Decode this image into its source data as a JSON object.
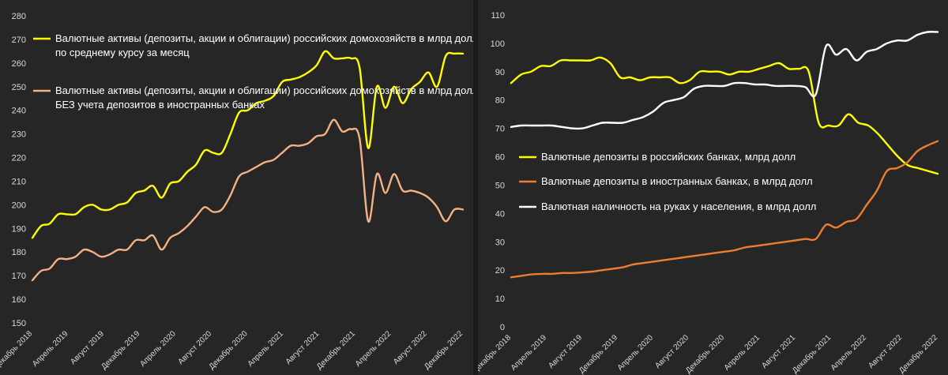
{
  "chart_data": [
    {
      "type": "line",
      "title": "",
      "ylim": [
        150,
        280
      ],
      "yticks": [
        "150",
        "160",
        "170",
        "180",
        "190",
        "200",
        "210",
        "220",
        "230",
        "240",
        "250",
        "260",
        "270",
        "280"
      ],
      "xticks": [
        "Декабрь 2018",
        "Апрель 2019",
        "Август 2019",
        "Декабрь 2019",
        "Апрель 2020",
        "Август 2020",
        "Декабрь 2020",
        "Апрель 2021",
        "Август 2021",
        "Декабрь 2021",
        "Апрель 2022",
        "Август 2022",
        "Декабрь 2022"
      ],
      "grid": false,
      "series": [
        {
          "name": "Валютные активы (депозиты, акции и облигации) российских домохозяйств в млрд долл по среднему курсу за месяц",
          "legend_lines": [
            "Валютные активы (депозиты, акции и облигации) российских домохозяйств в млрд долл",
            "по среднему курсу за месяц"
          ],
          "color": "#ffff00",
          "values": [
            186,
            191,
            192,
            196,
            196,
            196,
            199,
            200,
            198,
            198,
            200,
            201,
            205,
            206,
            208,
            203,
            209,
            210,
            214,
            217,
            223,
            222,
            222,
            230,
            239,
            240,
            243,
            244,
            246,
            252,
            253,
            254,
            256,
            259,
            265,
            262,
            262,
            262,
            258,
            224,
            250,
            241,
            250,
            243,
            249,
            252,
            256,
            250,
            263,
            264,
            264
          ]
        },
        {
          "name": "Валютные активы (депозиты, акции и облигации) российских домохозяйств в млрд долл БЕЗ учета депозитов в иностранных банках",
          "legend_lines": [
            "Валютные активы (депозиты, акции и облигации) российских домохозяйств в млрд долл",
            "БЕЗ учета депозитов в иностранных банках"
          ],
          "color": "#f4b183",
          "values": [
            168,
            172,
            173,
            177,
            177,
            178,
            181,
            180,
            178,
            179,
            181,
            181,
            185,
            185,
            187,
            181,
            186,
            188,
            191,
            195,
            199,
            197,
            198,
            204,
            212,
            214,
            216,
            218,
            219,
            222,
            225,
            225,
            226,
            229,
            230,
            236,
            231,
            232,
            228,
            193,
            213,
            205,
            213,
            206,
            206,
            205,
            203,
            199,
            193,
            198,
            198
          ]
        }
      ]
    },
    {
      "type": "line",
      "title": "",
      "ylim": [
        0,
        110
      ],
      "yticks": [
        "0",
        "10",
        "20",
        "30",
        "40",
        "50",
        "60",
        "70",
        "80",
        "90",
        "100",
        "110"
      ],
      "xticks": [
        "Декабрь 2018",
        "Апрель 2019",
        "Август 2019",
        "Декабрь 2019",
        "Апрель 2020",
        "Август 2020",
        "Декабрь 2020",
        "Апрель 2021",
        "Август 2021",
        "Декабрь 2021",
        "Апрель 2022",
        "Август 2022",
        "Декабрь 2022"
      ],
      "grid": false,
      "series": [
        {
          "name": "Валютные депозиты в российских банках, млрд долл",
          "color": "#ffff00",
          "values": [
            86,
            89,
            90,
            92,
            92,
            94,
            94,
            94,
            94,
            95,
            93,
            88,
            88,
            87,
            88,
            88,
            88,
            86,
            87,
            90,
            90,
            90,
            89,
            90,
            90,
            91,
            92,
            93,
            91,
            91,
            90,
            72,
            71,
            71,
            75,
            72,
            71,
            68,
            64,
            60,
            57,
            56,
            55,
            54
          ]
        },
        {
          "name": "Валютные депозиты в иностранных банках, в млрд долл",
          "color": "#ed7d31",
          "values": [
            17.5,
            18,
            18.5,
            18.7,
            18.7,
            19,
            19,
            19.2,
            19.5,
            20,
            20.5,
            21,
            22,
            22.5,
            23,
            23.5,
            24,
            24.5,
            25,
            25.5,
            26,
            26.5,
            27,
            28,
            28.5,
            29,
            29.5,
            30,
            30.5,
            31,
            31,
            36,
            35,
            37,
            38,
            43,
            48,
            55,
            56,
            58,
            62,
            64,
            65.5
          ]
        },
        {
          "name": "Валютная наличность на руках у населения, в млрд долл",
          "color": "#ffffff",
          "values": [
            70.5,
            71,
            71,
            71,
            71,
            70.5,
            70,
            70,
            71,
            72,
            72,
            72,
            73,
            74,
            76,
            79,
            80,
            81,
            84,
            85,
            85,
            85,
            86,
            86,
            85.5,
            85.5,
            85,
            85,
            85,
            84.5,
            82,
            99,
            96,
            98,
            94,
            97,
            98,
            100,
            101,
            101,
            103,
            104,
            104
          ]
        }
      ]
    }
  ]
}
